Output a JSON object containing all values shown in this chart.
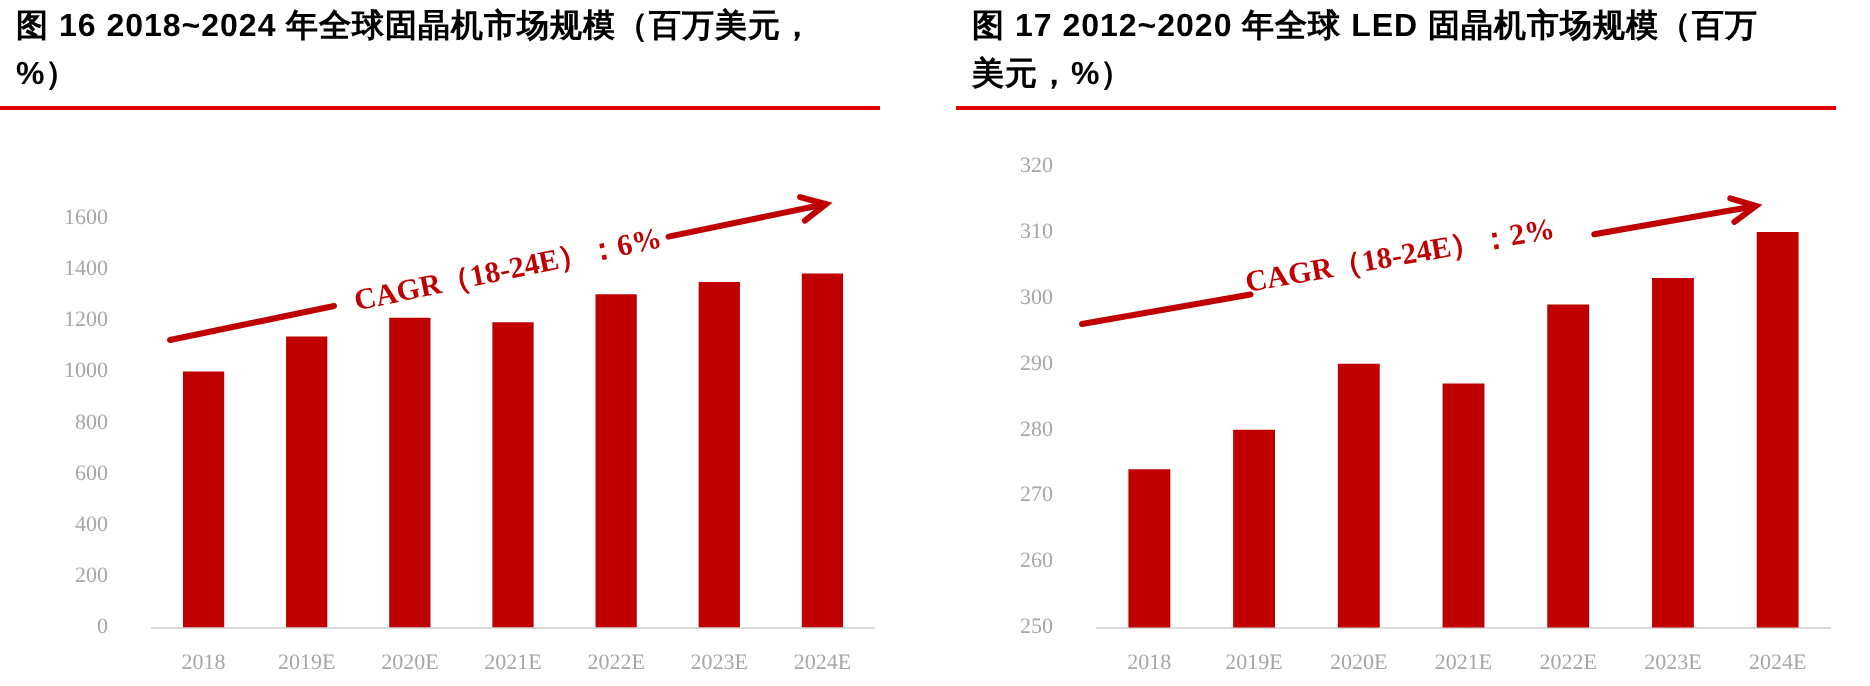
{
  "chart_data": [
    {
      "type": "bar",
      "title": "图 16 2018~2024 年全球固晶机市场规模（百万美元，%）",
      "categories": [
        "2018",
        "2019E",
        "2020E",
        "2021E",
        "2022E",
        "2023E",
        "2024E"
      ],
      "values": [
        1000,
        1137,
        1210,
        1193,
        1302,
        1350,
        1383
      ],
      "color": "#c00000",
      "ylim": [
        0,
        1600
      ],
      "yticks": [
        0,
        200,
        400,
        600,
        800,
        1000,
        1200,
        1400,
        1600
      ],
      "grid": false,
      "legend": false,
      "annotations": [
        "CAGR（18-24E）：6%"
      ]
    },
    {
      "type": "bar",
      "title": "图 17 2012~2020 年全球 LED 固晶机市场规模（百万美元，%）",
      "categories": [
        "2018",
        "2019E",
        "2020E",
        "2021E",
        "2022E",
        "2023E",
        "2024E"
      ],
      "values": [
        274,
        280,
        290,
        287,
        299,
        303,
        310
      ],
      "color": "#c00000",
      "ylim": [
        250,
        320
      ],
      "yticks": [
        250,
        260,
        270,
        280,
        290,
        300,
        310,
        320
      ],
      "grid": false,
      "legend": false,
      "annotations": [
        "CAGR（18-24E）：2%"
      ]
    }
  ]
}
